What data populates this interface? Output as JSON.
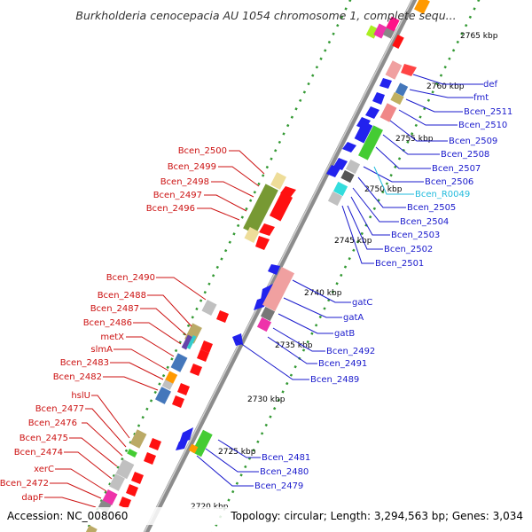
{
  "title": "Burkholderia cenocepacia AU 1054 chromosome 1, complete sequ...",
  "accession_text": "Accession: NC_008060",
  "topology_text": "Topology: circular; Length: 3,294,563 bp; Genes: 3,034",
  "colors": {
    "backbone": "#999999",
    "dots": "#339933",
    "forward_label": "#1a1acc",
    "reverse_label": "#cc1111",
    "rna_label": "#22bbdd"
  },
  "kbp_marks": [
    {
      "label": "2765 kbp",
      "pos": 2765
    },
    {
      "label": "2760 kbp",
      "pos": 2760
    },
    {
      "label": "2755 kbp",
      "pos": 2755
    },
    {
      "label": "2750 kbp",
      "pos": 2750
    },
    {
      "label": "2745 kbp",
      "pos": 2745
    },
    {
      "label": "2740 kbp",
      "pos": 2740
    },
    {
      "label": "2735 kbp",
      "pos": 2735
    },
    {
      "label": "2730 kbp",
      "pos": 2730
    },
    {
      "label": "2725 kbp",
      "pos": 2725
    },
    {
      "label": "2720 kbp",
      "pos": 2720
    }
  ],
  "forward_labels": [
    "def",
    "fmt",
    "Bcen_2511",
    "Bcen_2510",
    "Bcen_2509",
    "Bcen_2508",
    "Bcen_2507",
    "Bcen_2506",
    "Bcen_R0049",
    "Bcen_2505",
    "Bcen_2504",
    "Bcen_2503",
    "Bcen_2502",
    "Bcen_2501",
    "gatC",
    "gatA",
    "gatB",
    "Bcen_2492",
    "Bcen_2491",
    "Bcen_2489",
    "Bcen_2481",
    "Bcen_2480",
    "Bcen_2479"
  ],
  "reverse_labels": [
    "Bcen_2500",
    "Bcen_2499",
    "Bcen_2498",
    "Bcen_2497",
    "Bcen_2496",
    "Bcen_2490",
    "Bcen_2488",
    "Bcen_2487",
    "Bcen_2486",
    "metX",
    "slmA",
    "Bcen_2483",
    "Bcen_2482",
    "hslU",
    "Bcen_2477",
    "Bcen_2476",
    "Bcen_2475",
    "Bcen_2474",
    "xerC",
    "Bcen_2472",
    "dapF"
  ]
}
